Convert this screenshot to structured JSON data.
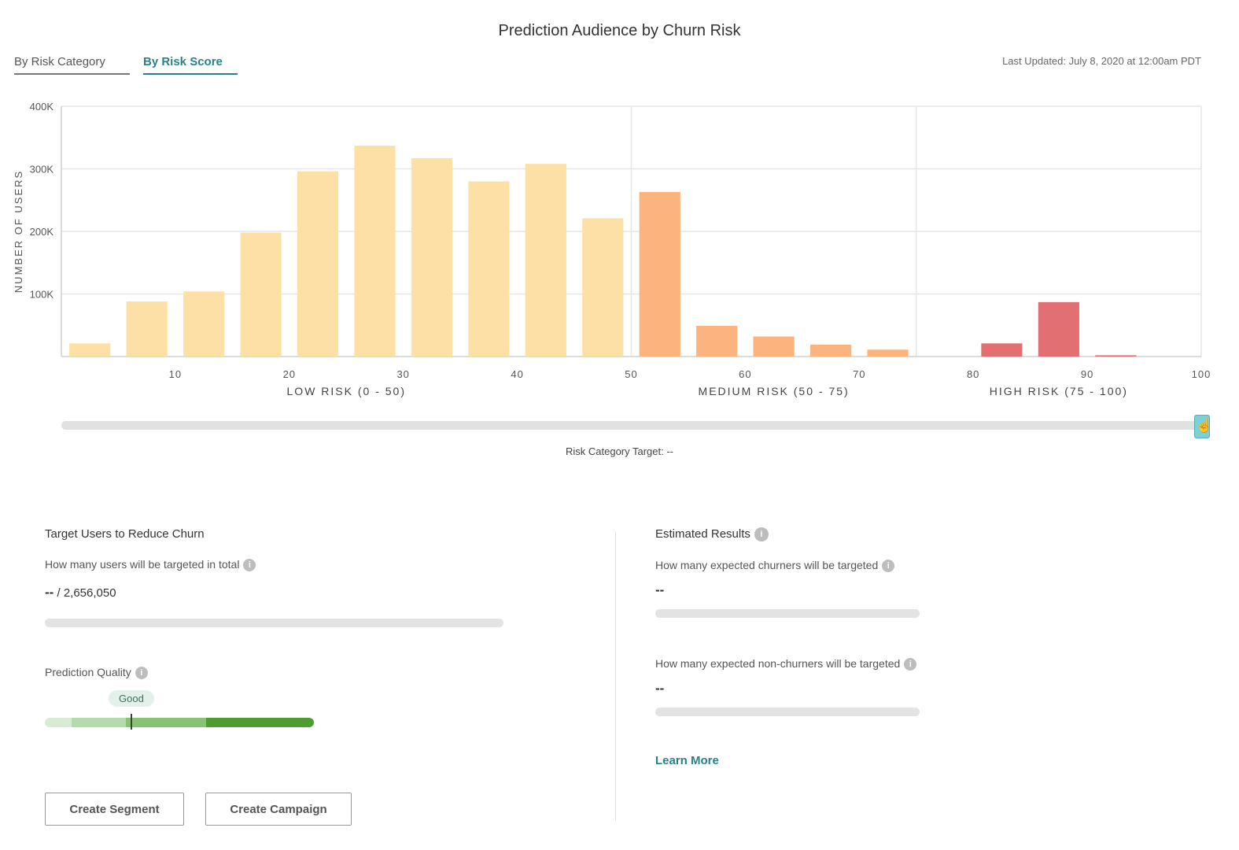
{
  "header": {
    "title": "Prediction Audience by Churn Risk",
    "tabs": [
      {
        "label": "By Risk Category",
        "active": false
      },
      {
        "label": "By Risk Score",
        "active": true
      }
    ],
    "last_updated": "Last Updated: July 8, 2020 at 12:00am PDT"
  },
  "chart_data": {
    "type": "bar",
    "ylabel": "NUMBER OF USERS",
    "ylim": [
      0,
      400000
    ],
    "ytick_labels": [
      "100K",
      "200K",
      "300K",
      "400K"
    ],
    "xlim": [
      0,
      100
    ],
    "xtick_labels": [
      "10",
      "20",
      "30",
      "40",
      "50",
      "60",
      "70",
      "80",
      "90",
      "100"
    ],
    "grid": true,
    "bin_width": 5,
    "categories": [
      "0-5",
      "5-10",
      "10-15",
      "15-20",
      "20-25",
      "25-30",
      "30-35",
      "35-40",
      "40-45",
      "45-50",
      "50-55",
      "55-60",
      "60-65",
      "65-70",
      "70-75",
      "75-80",
      "80-85",
      "85-90",
      "90-95",
      "95-100"
    ],
    "values": [
      21000,
      88000,
      104000,
      198000,
      296000,
      337000,
      317000,
      280000,
      308000,
      221000,
      263000,
      49000,
      32000,
      19000,
      11000,
      0,
      21000,
      87000,
      2000,
      0
    ],
    "region_labels": [
      "LOW RISK (0 - 50)",
      "MEDIUM RISK (50 - 75)",
      "HIGH RISK (75 - 100)"
    ],
    "colors": {
      "low": "#fde0a6",
      "medium": "#fbb47d",
      "high": "#e27073",
      "grid": "#e6e6e6",
      "axis": "#cfcfcf"
    }
  },
  "slider": {
    "target_label": "Risk Category Target: --",
    "value": 100,
    "cursor_icon": "hand-pointer-icon"
  },
  "left_panel": {
    "title": "Target Users to Reduce Churn",
    "targeted_question": "How many users will be targeted in total",
    "targeted_value": "--",
    "targeted_total": " / 2,656,050",
    "quality_label": "Prediction Quality",
    "quality_badge": "Good",
    "quality_colors": [
      "#d7ecd3",
      "#b4dbab",
      "#87c373",
      "#4e9c2f"
    ],
    "buttons": {
      "create_segment": "Create Segment",
      "create_campaign": "Create Campaign"
    }
  },
  "right_panel": {
    "title": "Estimated Results",
    "churners_question": "How many expected churners will be targeted",
    "churners_value": "--",
    "non_churners_question": "How many expected non-churners will be targeted",
    "non_churners_value": "--",
    "learn_more": "Learn More"
  },
  "info_icon": "i"
}
